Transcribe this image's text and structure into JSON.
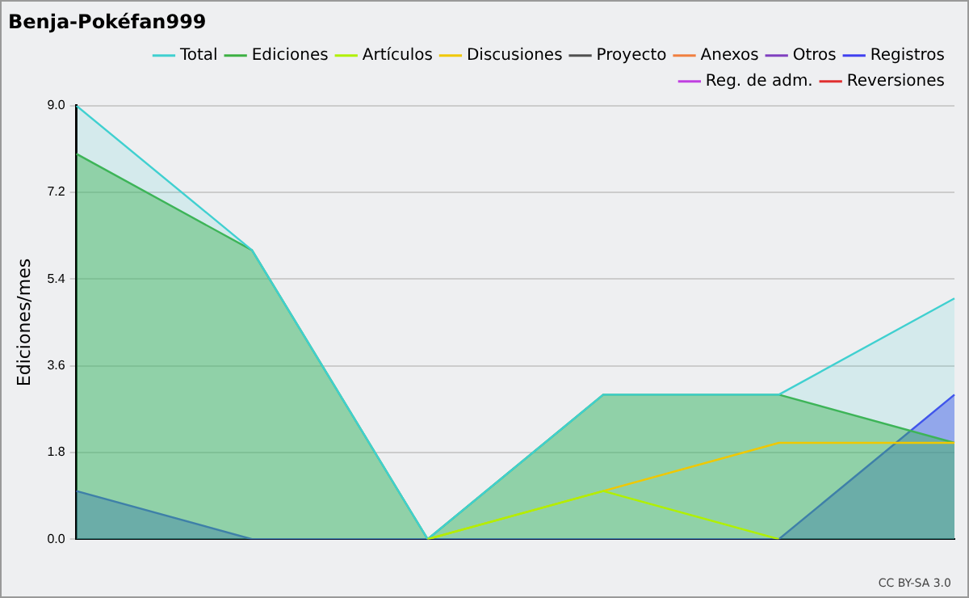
{
  "chart_data": {
    "type": "line",
    "title": "Benja-Pokéfan999",
    "ylabel": "Ediciones/mes",
    "categories": [
      null,
      null,
      null,
      null,
      null,
      null
    ],
    "series": [
      {
        "name": "Total",
        "type": "area",
        "color": "#40d0d0",
        "values": [
          9,
          6,
          0,
          3,
          3,
          5
        ]
      },
      {
        "name": "Ediciones",
        "type": "area",
        "color": "#3cb043",
        "values": [
          8,
          6,
          0,
          3,
          3,
          2
        ]
      },
      {
        "name": "Artículos",
        "color": "#b0f000",
        "values": [
          null,
          null,
          0,
          1,
          0,
          null
        ]
      },
      {
        "name": "Discusiones",
        "color": "#f0c800",
        "values": [
          null,
          null,
          0,
          1,
          2,
          2
        ]
      },
      {
        "name": "Proyecto",
        "color": "#505050",
        "values": [
          null,
          null,
          null,
          null,
          null,
          null
        ]
      },
      {
        "name": "Anexos",
        "color": "#f08040",
        "values": [
          null,
          null,
          null,
          null,
          null,
          null
        ]
      },
      {
        "name": "Otros",
        "color": "#8040c0",
        "values": [
          null,
          null,
          null,
          null,
          null,
          null
        ]
      },
      {
        "name": "Registros",
        "type": "area",
        "color": "#4040f0",
        "values": [
          1,
          0,
          0,
          0,
          0,
          3
        ]
      },
      {
        "name": "Reg. de adm.",
        "color": "#c040e0",
        "values": [
          null,
          null,
          null,
          null,
          null,
          null
        ]
      },
      {
        "name": "Reversiones",
        "color": "#e03030",
        "values": [
          null,
          null,
          null,
          null,
          null,
          null
        ]
      }
    ],
    "ylim": [
      0,
      9
    ],
    "yticks": [
      {
        "value": 0,
        "label": "0.0"
      },
      1.8,
      3.6,
      5.4,
      7.2,
      {
        "value": 9,
        "label": "9.0"
      }
    ],
    "grid": "y",
    "legend": "top right",
    "marker": "none",
    "annotations": [
      "CC BY-SA 3.0"
    ]
  }
}
